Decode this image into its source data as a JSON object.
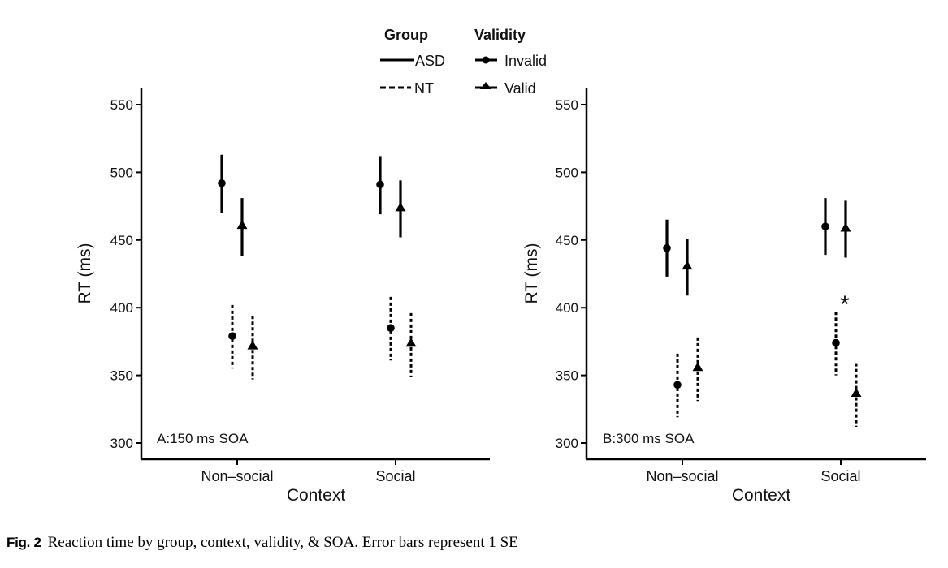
{
  "legend": {
    "group_title": "Group",
    "validity_title": "Validity",
    "groups": [
      {
        "label": "ASD",
        "line": "solid"
      },
      {
        "label": "NT",
        "line": "dashed"
      }
    ],
    "validity": [
      {
        "label": "Invalid",
        "marker": "circle"
      },
      {
        "label": "Valid",
        "marker": "triangle"
      }
    ]
  },
  "caption": {
    "label": "Fig. 2",
    "text": "Reaction time by group, context, validity, & SOA. Error bars represent 1 SE"
  },
  "chart_data": [
    {
      "type": "scatter",
      "panel_label": "A:150 ms SOA",
      "xlabel": "Context",
      "ylabel": "RT (ms)",
      "ylim": [
        288,
        560
      ],
      "yticks": [
        300,
        350,
        400,
        450,
        500,
        550
      ],
      "categories": [
        "Non–social",
        "Social"
      ],
      "grid": false,
      "series": [
        {
          "name": "ASD Invalid",
          "group": "ASD",
          "validity": "Invalid",
          "values": [
            492,
            491
          ],
          "se_low": [
            470,
            469
          ],
          "se_high": [
            513,
            512
          ]
        },
        {
          "name": "ASD Valid",
          "group": "ASD",
          "validity": "Valid",
          "values": [
            460,
            473
          ],
          "se_low": [
            438,
            452
          ],
          "se_high": [
            481,
            494
          ]
        },
        {
          "name": "NT Invalid",
          "group": "NT",
          "validity": "Invalid",
          "values": [
            379,
            385
          ],
          "se_low": [
            355,
            361
          ],
          "se_high": [
            402,
            408
          ]
        },
        {
          "name": "NT Valid",
          "group": "NT",
          "validity": "Valid",
          "values": [
            371,
            373
          ],
          "se_low": [
            347,
            349
          ],
          "se_high": [
            394,
            396
          ]
        }
      ],
      "annotations": []
    },
    {
      "type": "scatter",
      "panel_label": "B:300 ms SOA",
      "xlabel": "Context",
      "ylabel": "RT (ms)",
      "ylim": [
        288,
        560
      ],
      "yticks": [
        300,
        350,
        400,
        450,
        500,
        550
      ],
      "categories": [
        "Non–social",
        "Social"
      ],
      "grid": false,
      "series": [
        {
          "name": "ASD Invalid",
          "group": "ASD",
          "validity": "Invalid",
          "values": [
            444,
            460
          ],
          "se_low": [
            423,
            439
          ],
          "se_high": [
            465,
            481
          ]
        },
        {
          "name": "ASD Valid",
          "group": "ASD",
          "validity": "Valid",
          "values": [
            430,
            458
          ],
          "se_low": [
            409,
            437
          ],
          "se_high": [
            451,
            479
          ]
        },
        {
          "name": "NT Invalid",
          "group": "NT",
          "validity": "Invalid",
          "values": [
            343,
            374
          ],
          "se_low": [
            319,
            350
          ],
          "se_high": [
            366,
            397
          ]
        },
        {
          "name": "NT Valid",
          "group": "NT",
          "validity": "Valid",
          "values": [
            355,
            336
          ],
          "se_low": [
            331,
            312
          ],
          "se_high": [
            378,
            359
          ]
        }
      ],
      "annotations": [
        {
          "text": "*",
          "category": "Social",
          "near_series": "NT",
          "y": 405
        }
      ]
    }
  ]
}
